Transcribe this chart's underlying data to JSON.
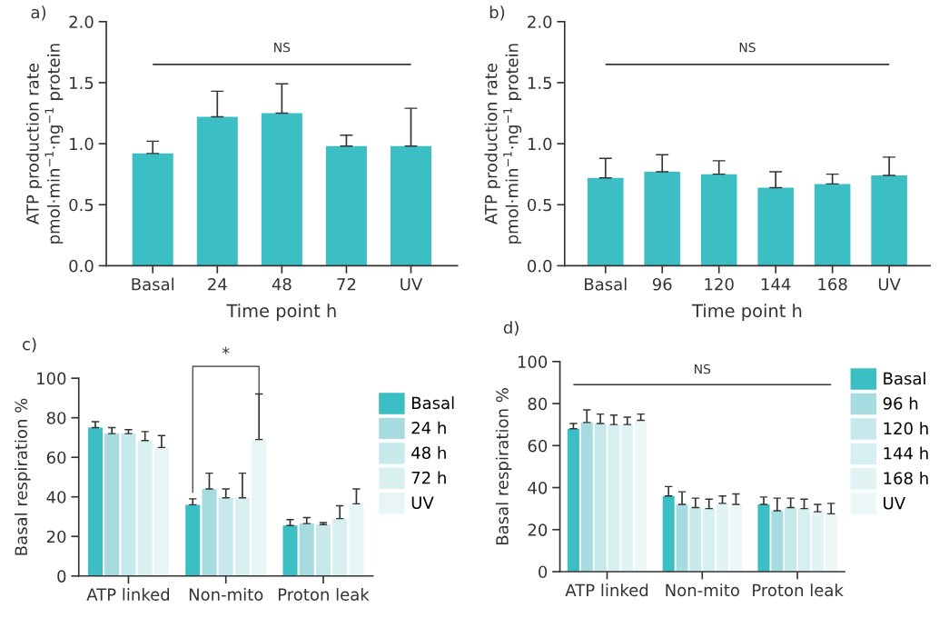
{
  "chart_data": [
    {
      "type": "bar",
      "title": "a)",
      "xlabel": "Time point h",
      "ylabel": "ATP production rate\npmol·min$^{−1}$·ng$^{−1}$ protein",
      "categories": [
        "Basal",
        "24",
        "48",
        "72",
        "UV"
      ],
      "values": [
        0.92,
        1.22,
        1.25,
        0.98,
        0.98
      ],
      "errors": [
        [
          0.92,
          1.02
        ],
        [
          1.22,
          1.43
        ],
        [
          1.25,
          1.49
        ],
        [
          0.98,
          1.07
        ],
        [
          0.98,
          1.29
        ]
      ],
      "color": "#3bbfc4",
      "ylim": [
        0,
        2.0
      ],
      "yticks": [
        {
          "value": 0,
          "label": "0.0"
        },
        {
          "value": 0.5,
          "label": "0.5"
        },
        {
          "value": 1.0,
          "label": "1.0"
        },
        {
          "value": 1.5,
          "label": "1.5"
        },
        {
          "value": 2.0,
          "label": "2.0"
        }
      ],
      "ref_lines": [
        {
          "axis": "y",
          "value": 1.65,
          "label": "NS"
        }
      ],
      "grid": false,
      "legend": false
    },
    {
      "type": "bar",
      "title": "b)",
      "xlabel": "Time point h",
      "ylabel": "ATP production rate\npmol·min$^{−1}$·ng$^{−1}$ protein",
      "categories": [
        "Basal",
        "96",
        "120",
        "144",
        "168",
        "UV"
      ],
      "values": [
        0.72,
        0.77,
        0.75,
        0.64,
        0.67,
        0.74
      ],
      "errors": [
        [
          0.72,
          0.88
        ],
        [
          0.77,
          0.91
        ],
        [
          0.75,
          0.86
        ],
        [
          0.64,
          0.77
        ],
        [
          0.67,
          0.75
        ],
        [
          0.74,
          0.89
        ]
      ],
      "color": "#3bbfc4",
      "ylim": [
        0,
        2.0
      ],
      "yticks": [
        {
          "value": 0,
          "label": "0.0"
        },
        {
          "value": 0.5,
          "label": "0.5"
        },
        {
          "value": 1.0,
          "label": "1.0"
        },
        {
          "value": 1.5,
          "label": "1.5"
        },
        {
          "value": 2.0,
          "label": "2.0"
        }
      ],
      "ref_lines": [
        {
          "axis": "y",
          "value": 1.65,
          "label": "NS"
        }
      ],
      "grid": false,
      "legend": false
    },
    {
      "type": "bar",
      "title": "c)",
      "ylabel": "Basal respiration %",
      "categories": [
        "ATP linked",
        "Non-mito",
        "Proton leak"
      ],
      "series": [
        {
          "name": "Basal",
          "color": "#3bbfc4",
          "values": [
            75,
            36,
            25.5
          ],
          "errors": [
            [
              75,
              78
            ],
            [
              36,
              39
            ],
            [
              25.5,
              28.5
            ]
          ]
        },
        {
          "name": "24 h",
          "color": "#a6dce0",
          "values": [
            72,
            44,
            26.5
          ],
          "errors": [
            [
              72,
              75
            ],
            [
              44,
              52
            ],
            [
              26.5,
              29.5
            ]
          ]
        },
        {
          "name": "48 h",
          "color": "#c8e9eb",
          "values": [
            72,
            39.5,
            26
          ],
          "errors": [
            [
              72,
              74
            ],
            [
              39.5,
              44
            ],
            [
              26,
              27
            ]
          ]
        },
        {
          "name": "72 h",
          "color": "#d9f0f1",
          "values": [
            68.5,
            39.5,
            29
          ],
          "errors": [
            [
              68.5,
              73
            ],
            [
              39.5,
              52
            ],
            [
              29,
              35.5
            ]
          ]
        },
        {
          "name": "UV",
          "color": "#e8f5f6",
          "values": [
            65,
            69,
            36.5
          ],
          "errors": [
            [
              65,
              71
            ],
            [
              69,
              92
            ],
            [
              36.5,
              44
            ]
          ]
        }
      ],
      "ylim": [
        0,
        100
      ],
      "yticks": [
        0,
        20,
        40,
        60,
        80,
        100
      ],
      "annotations": [
        "*"
      ],
      "grid": false,
      "legend": "right"
    },
    {
      "type": "bar",
      "title": "d)",
      "ylabel": "Basal respiration %",
      "categories": [
        "ATP linked",
        "Non-mito",
        "Proton leak"
      ],
      "series": [
        {
          "name": "Basal",
          "color": "#3bbfc4",
          "values": [
            68,
            36,
            32
          ],
          "errors": [
            [
              68,
              70.5
            ],
            [
              36,
              40.5
            ],
            [
              32,
              35.5
            ]
          ]
        },
        {
          "name": "96 h",
          "color": "#a6dce0",
          "values": [
            71,
            32,
            29
          ],
          "errors": [
            [
              71,
              77
            ],
            [
              32,
              38
            ],
            [
              29,
              35
            ]
          ]
        },
        {
          "name": "120 h",
          "color": "#c8e9eb",
          "values": [
            70.5,
            30.5,
            30.5
          ],
          "errors": [
            [
              70.5,
              75
            ],
            [
              30.5,
              35
            ],
            [
              30.5,
              35
            ]
          ]
        },
        {
          "name": "144 h",
          "color": "#d6eff0",
          "values": [
            70,
            30,
            30
          ],
          "errors": [
            [
              70,
              74.5
            ],
            [
              30,
              34.5
            ],
            [
              30,
              34.5
            ]
          ]
        },
        {
          "name": "168 h",
          "color": "#e2f3f4",
          "values": [
            70,
            32.5,
            28.5
          ],
          "errors": [
            [
              70,
              73.5
            ],
            [
              32.5,
              36
            ],
            [
              28.5,
              32
            ]
          ]
        },
        {
          "name": "UV",
          "color": "#ecf7f8",
          "values": [
            72,
            32,
            27.5
          ],
          "errors": [
            [
              72,
              75
            ],
            [
              32,
              37
            ],
            [
              27.5,
              32.5
            ]
          ]
        }
      ],
      "ylim": [
        0,
        100
      ],
      "yticks": [
        0,
        20,
        40,
        60,
        80,
        100
      ],
      "ref_lines": [
        {
          "axis": "y",
          "value": 89,
          "label": "NS"
        }
      ],
      "grid": false,
      "legend": "right"
    }
  ]
}
